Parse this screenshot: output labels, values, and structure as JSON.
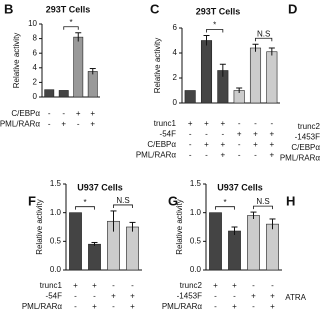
{
  "chart_data": [
    {
      "type": "bar",
      "panel": "B",
      "title": "293T Cells",
      "ylabel": "Relative activity",
      "values": [
        1.0,
        0.9,
        8.2,
        3.5
      ],
      "errors": [
        0,
        0,
        0.6,
        0.4
      ],
      "colors": [
        "#444444",
        "#444444",
        "#999999",
        "#999999"
      ],
      "ylim": [
        0,
        10
      ],
      "yticks": [
        0,
        2,
        4,
        6,
        8,
        10
      ],
      "annotations": [
        "*"
      ],
      "conditions": [
        {
          "label": "C/EBPα",
          "signs": [
            "-",
            "-",
            "+",
            "+"
          ]
        },
        {
          "label": "PML/RARα",
          "signs": [
            "-",
            "+",
            "-",
            "+"
          ]
        }
      ]
    },
    {
      "type": "bar",
      "panel": "C",
      "title": "293T Cells",
      "ylabel": "Relative activity",
      "values": [
        1.0,
        5.0,
        2.6,
        1.0,
        4.4,
        4.1
      ],
      "errors": [
        0,
        0.4,
        0.5,
        0.2,
        0.3,
        0.3
      ],
      "colors": [
        "#444444",
        "#444444",
        "#444444",
        "#cccccc",
        "#cccccc",
        "#cccccc"
      ],
      "ylim": [
        0,
        6
      ],
      "yticks": [
        0,
        2,
        4,
        6
      ],
      "annotations": [
        "*",
        "N.S"
      ],
      "conditions": [
        {
          "label": "trunc1",
          "signs": [
            "+",
            "+",
            "+",
            "-",
            "-",
            "-"
          ]
        },
        {
          "label": "-54F",
          "signs": [
            "-",
            "-",
            "-",
            "+",
            "+",
            "+"
          ]
        },
        {
          "label": "C/EBPα",
          "signs": [
            "-",
            "+",
            "+",
            "-",
            "+",
            "+"
          ]
        },
        {
          "label": "PML/RARα",
          "signs": [
            "-",
            "-",
            "+",
            "-",
            "-",
            "+"
          ]
        }
      ]
    },
    {
      "type": "bar",
      "panel": "D",
      "conditions": [
        {
          "label": "trunc2"
        },
        {
          "label": "-1453F"
        },
        {
          "label": "C/EBPα"
        },
        {
          "label": "PML/RARα"
        }
      ]
    },
    {
      "type": "bar",
      "panel": "F",
      "title": "U937 Cells",
      "ylabel": "Relative activity",
      "values": [
        1.0,
        0.45,
        0.85,
        0.75
      ],
      "errors": [
        0,
        0.03,
        0.18,
        0.08
      ],
      "colors": [
        "#444444",
        "#444444",
        "#cccccc",
        "#cccccc"
      ],
      "ylim": [
        0,
        1.5
      ],
      "yticks": [
        {
          "value": 0,
          "label": "0.0"
        },
        {
          "value": 0.5,
          "label": "0.5"
        },
        {
          "value": 1,
          "label": "1.0"
        },
        {
          "value": 1.5,
          "label": "1.5"
        }
      ],
      "annotations": [
        "*",
        "N.S"
      ],
      "conditions": [
        {
          "label": "trunc1",
          "signs": [
            "+",
            "+",
            "-",
            "-"
          ]
        },
        {
          "label": "-54F",
          "signs": [
            "-",
            "-",
            "+",
            "+"
          ]
        },
        {
          "label": "PML/RARα",
          "signs": [
            "-",
            "+",
            "-",
            "+"
          ]
        }
      ]
    },
    {
      "type": "bar",
      "panel": "G",
      "title": "U937 Cells",
      "ylabel": "Relative activity",
      "values": [
        1.0,
        0.68,
        0.95,
        0.8
      ],
      "errors": [
        0,
        0.07,
        0.06,
        0.09
      ],
      "colors": [
        "#444444",
        "#444444",
        "#cccccc",
        "#cccccc"
      ],
      "ylim": [
        0,
        1.5
      ],
      "yticks": [
        {
          "value": 0,
          "label": "0.0"
        },
        {
          "value": 0.5,
          "label": "0.5"
        },
        {
          "value": 1,
          "label": "1.0"
        },
        {
          "value": 1.5,
          "label": "1.5"
        }
      ],
      "annotations": [
        "*",
        "N.S"
      ],
      "conditions": [
        {
          "label": "trunc2",
          "signs": [
            "+",
            "+",
            "-",
            "-"
          ]
        },
        {
          "label": "-1453F",
          "signs": [
            "-",
            "-",
            "+",
            "+"
          ]
        },
        {
          "label": "PML/RARα",
          "signs": [
            "-",
            "+",
            "-",
            "+"
          ]
        }
      ]
    },
    {
      "type": "bar",
      "panel": "H",
      "conditions": [
        {
          "label": "ATRA"
        }
      ]
    }
  ]
}
